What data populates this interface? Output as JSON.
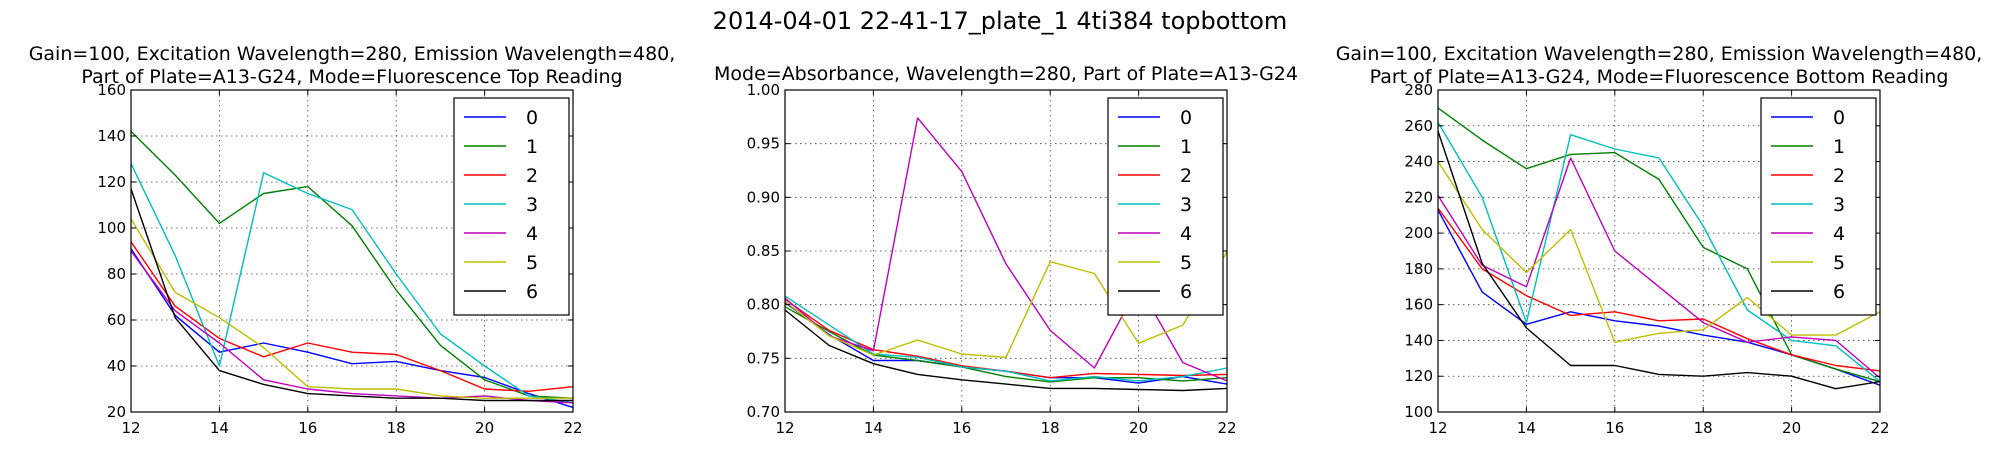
{
  "suptitle": "2014-04-01 22-41-17_plate_1 4ti384 topbottom",
  "colors": [
    "#0000ff",
    "#008000",
    "#ff0000",
    "#00bfbf",
    "#bf00bf",
    "#bfbf00",
    "#000000"
  ],
  "chart_data": [
    {
      "type": "line",
      "title_lines": [
        "Gain=100, Excitation Wavelength=280, Emission Wavelength=480,",
        "Part of Plate=A13-G24, Mode=Fluorescence Top Reading"
      ],
      "x": [
        12,
        13,
        14,
        15,
        16,
        17,
        18,
        19,
        20,
        21,
        22
      ],
      "xlim": [
        12,
        22
      ],
      "ylim": [
        20,
        160
      ],
      "xticks": [
        12,
        14,
        16,
        18,
        20,
        22
      ],
      "yticks": [
        20,
        40,
        60,
        80,
        100,
        120,
        140,
        160
      ],
      "grid": true,
      "legend_position": "top-right",
      "series": [
        {
          "name": "0",
          "values": [
            91,
            62,
            46,
            50,
            46,
            41,
            42,
            38,
            35,
            28,
            22
          ]
        },
        {
          "name": "1",
          "values": [
            142,
            123,
            102,
            115,
            118,
            101,
            73,
            49,
            34,
            27,
            26
          ]
        },
        {
          "name": "2",
          "values": [
            94,
            66,
            52,
            44,
            50,
            46,
            45,
            38,
            30,
            29,
            31
          ]
        },
        {
          "name": "3",
          "values": [
            128,
            88,
            40,
            124,
            115,
            108,
            80,
            54,
            40,
            27,
            24
          ]
        },
        {
          "name": "4",
          "values": [
            90,
            64,
            50,
            34,
            30,
            28,
            27,
            26,
            27,
            25,
            24
          ]
        },
        {
          "name": "5",
          "values": [
            104,
            72,
            61,
            48,
            31,
            30,
            30,
            27,
            26,
            26,
            26
          ]
        },
        {
          "name": "6",
          "values": [
            117,
            61,
            38,
            32,
            28,
            27,
            26,
            26,
            25,
            25,
            25
          ]
        }
      ]
    },
    {
      "type": "line",
      "title_lines": [
        "Mode=Absorbance, Wavelength=280, Part of Plate=A13-G24"
      ],
      "x": [
        12,
        13,
        14,
        15,
        16,
        17,
        18,
        19,
        20,
        21,
        22
      ],
      "xlim": [
        12,
        22
      ],
      "ylim": [
        0.7,
        1.0
      ],
      "xticks": [
        12,
        14,
        16,
        18,
        20,
        22
      ],
      "yticks": [
        0.7,
        0.75,
        0.8,
        0.85,
        0.9,
        0.95,
        1.0
      ],
      "grid": true,
      "legend_position": "top-right",
      "series": [
        {
          "name": "0",
          "values": [
            0.802,
            0.772,
            0.748,
            0.748,
            0.742,
            0.738,
            0.732,
            0.732,
            0.727,
            0.733,
            0.726
          ]
        },
        {
          "name": "1",
          "values": [
            0.798,
            0.775,
            0.753,
            0.748,
            0.742,
            0.733,
            0.728,
            0.732,
            0.732,
            0.729,
            0.732
          ]
        },
        {
          "name": "2",
          "values": [
            0.805,
            0.776,
            0.758,
            0.752,
            0.743,
            0.738,
            0.732,
            0.736,
            0.735,
            0.734,
            0.735
          ]
        },
        {
          "name": "3",
          "values": [
            0.808,
            0.781,
            0.754,
            0.751,
            0.742,
            0.738,
            0.729,
            0.733,
            0.729,
            0.733,
            0.741
          ]
        },
        {
          "name": "4",
          "values": [
            0.806,
            0.771,
            0.757,
            0.974,
            0.924,
            0.838,
            0.776,
            0.741,
            0.818,
            0.746,
            0.729
          ]
        },
        {
          "name": "5",
          "values": [
            0.803,
            0.771,
            0.753,
            0.767,
            0.754,
            0.751,
            0.84,
            0.829,
            0.764,
            0.781,
            0.849
          ]
        },
        {
          "name": "6",
          "values": [
            0.795,
            0.762,
            0.745,
            0.735,
            0.73,
            0.726,
            0.722,
            0.722,
            0.721,
            0.72,
            0.722
          ]
        }
      ]
    },
    {
      "type": "line",
      "title_lines": [
        "Gain=100, Excitation Wavelength=280, Emission Wavelength=480,",
        "Part of Plate=A13-G24, Mode=Fluorescence Bottom Reading"
      ],
      "x": [
        12,
        13,
        14,
        15,
        16,
        17,
        18,
        19,
        20,
        21,
        22
      ],
      "xlim": [
        12,
        22
      ],
      "ylim": [
        100,
        280
      ],
      "xticks": [
        12,
        14,
        16,
        18,
        20,
        22
      ],
      "yticks": [
        100,
        120,
        140,
        160,
        180,
        200,
        220,
        240,
        260,
        280
      ],
      "grid": true,
      "legend_position": "top-right",
      "series": [
        {
          "name": "0",
          "values": [
            213,
            167,
            149,
            156,
            151,
            148,
            143,
            139,
            132,
            124,
            115
          ]
        },
        {
          "name": "1",
          "values": [
            270,
            252,
            236,
            244,
            245,
            230,
            192,
            180,
            132,
            124,
            117
          ]
        },
        {
          "name": "2",
          "values": [
            214,
            180,
            165,
            154,
            156,
            151,
            152,
            141,
            132,
            126,
            123
          ]
        },
        {
          "name": "3",
          "values": [
            262,
            220,
            150,
            255,
            247,
            242,
            204,
            157,
            140,
            137,
            117
          ]
        },
        {
          "name": "4",
          "values": [
            221,
            182,
            170,
            242,
            190,
            170,
            150,
            139,
            142,
            140,
            119
          ]
        },
        {
          "name": "5",
          "values": [
            240,
            202,
            178,
            202,
            139,
            144,
            146,
            164,
            143,
            143,
            156
          ]
        },
        {
          "name": "6",
          "values": [
            257,
            183,
            147,
            126,
            126,
            121,
            120,
            122,
            120,
            113,
            117
          ]
        }
      ]
    }
  ]
}
